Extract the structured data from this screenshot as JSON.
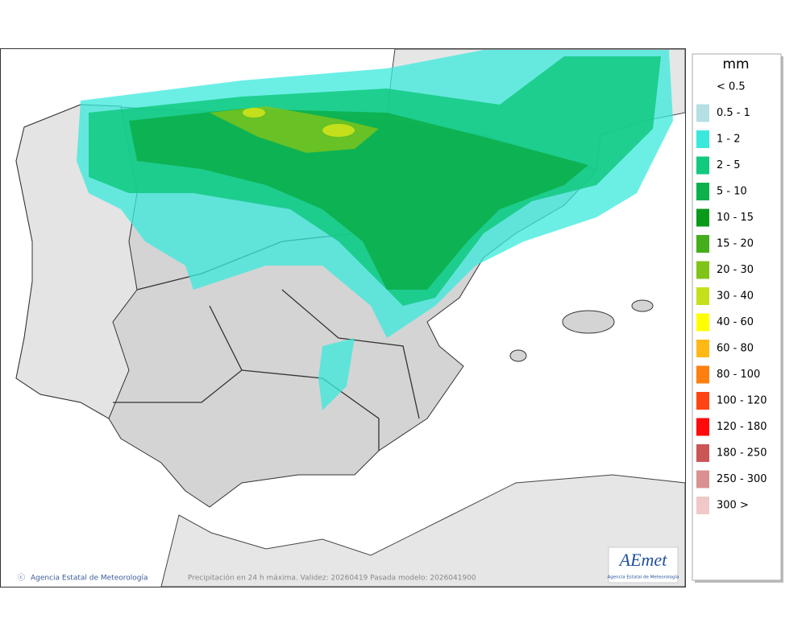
{
  "legend": {
    "title": "mm",
    "items": [
      {
        "label": "< 0.5"
      },
      {
        "label": "0.5 - 1",
        "color": "#b4dfe3"
      },
      {
        "label": "1 - 2",
        "color": "#3ae9dc"
      },
      {
        "label": "2 - 5",
        "color": "#12c980"
      },
      {
        "label": "5 - 10",
        "color": "#0cb04c"
      },
      {
        "label": "10 - 15",
        "color": "#0a9a1a"
      },
      {
        "label": "15 - 20",
        "color": "#44ae1c"
      },
      {
        "label": "20 - 30",
        "color": "#80c41a"
      },
      {
        "label": "30 - 40",
        "color": "#c4e01a"
      },
      {
        "label": "40 - 60",
        "color": "#ffff00"
      },
      {
        "label": "60 - 80",
        "color": "#ffb814"
      },
      {
        "label": "80 - 100",
        "color": "#ff8010"
      },
      {
        "label": "100 - 120",
        "color": "#ff4414"
      },
      {
        "label": "120 - 180",
        "color": "#ff0a0a"
      },
      {
        "label": "180 - 250",
        "color": "#cc5656"
      },
      {
        "label": "250 - 300",
        "color": "#da9090"
      },
      {
        "label": "300 >",
        "color": "#f0c8c8"
      }
    ]
  },
  "footer": {
    "credit": "Agencia Estatal de Meteorología",
    "caption": "Precipitación en 24 h máxima. Validez: 20260419 Pasada modelo: 2026041900"
  },
  "logo": {
    "name": "AEmet",
    "subtitle": "Agencia Estatal de Meteorología"
  }
}
